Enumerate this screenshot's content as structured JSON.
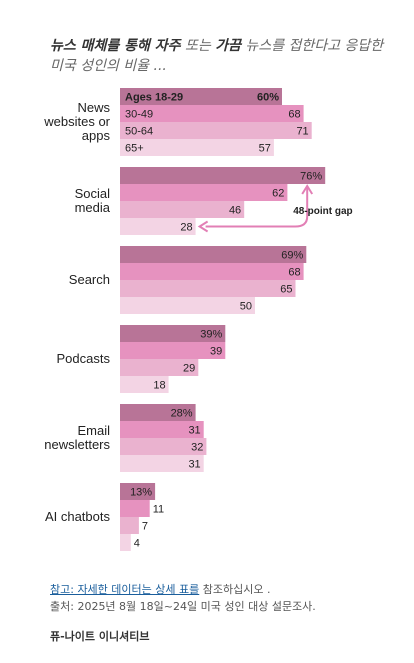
{
  "title": {
    "emph1": "뉴스 매체를 통해 자주",
    "part2": " 또는 ",
    "emph2": "가끔",
    "part3": " 뉴스를 접한다고 응답한 미국 성인의 비율 ..."
  },
  "colors": {
    "series": [
      "#b87497",
      "#e692bf",
      "#eab2cf",
      "#f3d4e4"
    ],
    "annotation": "#e27fb5"
  },
  "chart_data": {
    "type": "bar",
    "orientation": "horizontal",
    "categories": [
      "News websites or apps",
      "Social media",
      "Search",
      "Podcasts",
      "Email newsletters",
      "AI chatbots"
    ],
    "category_label_lines": [
      [
        "News",
        "websites or",
        "apps"
      ],
      [
        "Social",
        "media"
      ],
      [
        "Search"
      ],
      [
        "Podcasts"
      ],
      [
        "Email",
        "newsletters"
      ],
      [
        "AI chatbots"
      ]
    ],
    "series": [
      {
        "name": "Ages 18-29",
        "values": [
          60,
          76,
          69,
          39,
          28,
          13
        ]
      },
      {
        "name": "30-49",
        "values": [
          68,
          62,
          68,
          39,
          31,
          11
        ]
      },
      {
        "name": "50-64",
        "values": [
          71,
          46,
          65,
          29,
          32,
          7
        ]
      },
      {
        "name": "65+",
        "values": [
          57,
          28,
          50,
          18,
          31,
          4
        ]
      }
    ],
    "value_suffix": "%",
    "annotation": "48-point gap",
    "xlim": [
      0,
      100
    ]
  },
  "footer": {
    "note_link": "참고: 자세한 데이터는 상세 표를",
    "note_rest": " 참조하십시오 .",
    "source": "출처: 2025년 8월 18일~24일 미국 성인 대상 설문조사.",
    "credit": "퓨-나이트 이니셔티브"
  }
}
